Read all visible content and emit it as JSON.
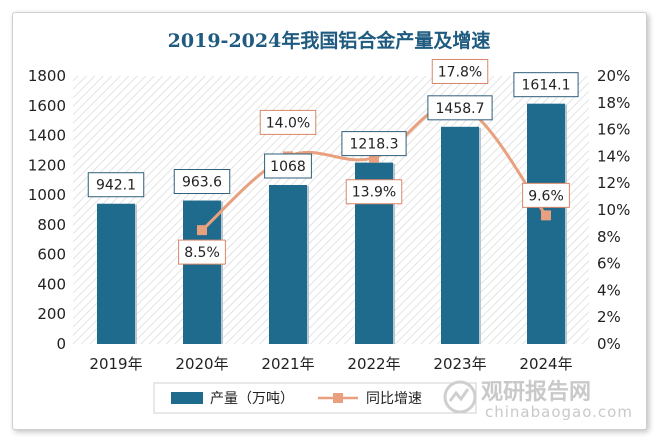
{
  "chart_data": {
    "type": "bar",
    "title": "2019-2024年我国铝合金产量及增速",
    "categories": [
      "2019年",
      "2020年",
      "2021年",
      "2022年",
      "2023年",
      "2024年"
    ],
    "series": [
      {
        "name": "产量（万吨）",
        "type": "bar",
        "axis": "left",
        "values": [
          942.1,
          963.6,
          1068,
          1218.3,
          1458.7,
          1614.1
        ],
        "labels": [
          "942.1",
          "963.6",
          "1068",
          "1218.3",
          "1458.7",
          "1614.1"
        ],
        "color": "#1f6b8e"
      },
      {
        "name": "同比增速",
        "type": "line",
        "axis": "right",
        "values": [
          null,
          8.5,
          14.0,
          13.9,
          17.8,
          9.6
        ],
        "labels": [
          "",
          "8.5%",
          "14.0%",
          "13.9%",
          "17.8%",
          "9.6%"
        ],
        "color": "#e8a07f"
      }
    ],
    "y_left": {
      "min": 0,
      "max": 1800,
      "step": 200,
      "tick_labels": [
        "0",
        "200",
        "400",
        "600",
        "800",
        "1000",
        "1200",
        "1400",
        "1600",
        "1800"
      ]
    },
    "y_right": {
      "min": 0,
      "max": 20,
      "step": 2,
      "tick_labels": [
        "0%",
        "2%",
        "4%",
        "6%",
        "8%",
        "10%",
        "12%",
        "14%",
        "16%",
        "18%",
        "20%"
      ]
    },
    "legend_position": "bottom"
  },
  "watermark": {
    "cn": "观研报告网",
    "en": "chinabaogao.com"
  }
}
